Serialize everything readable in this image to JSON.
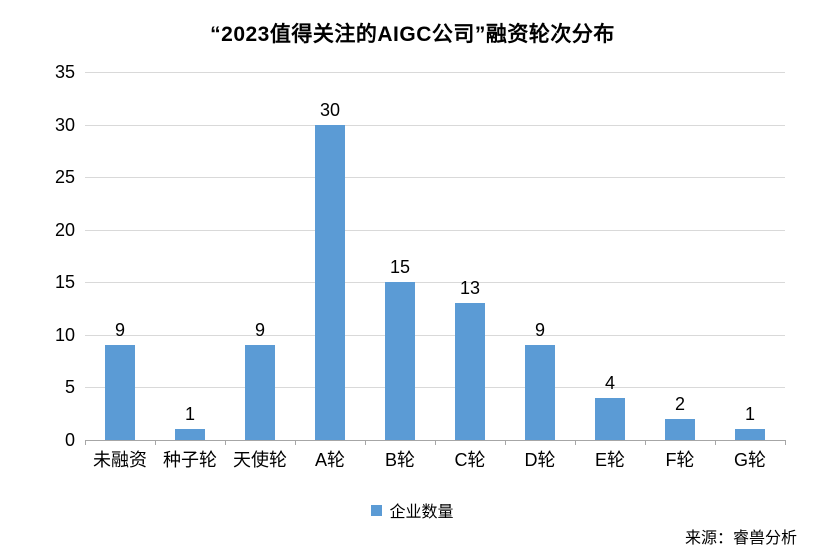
{
  "title": "“2023值得关注的AIGC公司”融资轮次分布",
  "legend": {
    "label": "企业数量",
    "color": "#5B9BD5"
  },
  "source": "来源：睿兽分析",
  "chart_data": {
    "type": "bar",
    "title": "“2023值得关注的AIGC公司”融资轮次分布",
    "categories": [
      "未融资",
      "种子轮",
      "天使轮",
      "A轮",
      "B轮",
      "C轮",
      "D轮",
      "E轮",
      "F轮",
      "G轮"
    ],
    "values": [
      9,
      1,
      9,
      30,
      15,
      13,
      9,
      4,
      2,
      1
    ],
    "series_name": "企业数量",
    "xlabel": "",
    "ylabel": "",
    "ylim": [
      0,
      35
    ],
    "yticks": [
      0,
      5,
      10,
      15,
      20,
      25,
      30,
      35
    ],
    "grid": true,
    "legend_position": "bottom",
    "bar_color": "#5B9BD5",
    "source": "来源：睿兽分析"
  }
}
